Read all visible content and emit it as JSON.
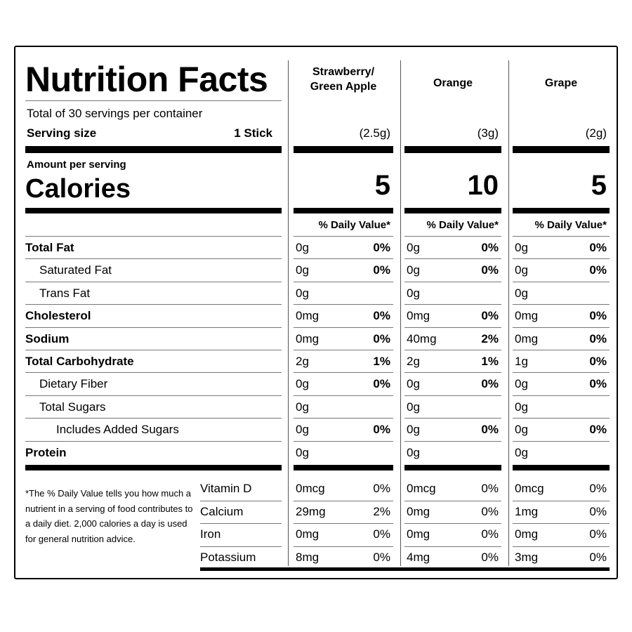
{
  "title": "Nutrition Facts",
  "servings_per_container": "Total of 30 servings per container",
  "serving_size_label": "Serving size",
  "serving_size_value": "1 Stick",
  "amount_per_serving": "Amount per serving",
  "calories_label": "Calories",
  "daily_value_header": "% Daily Value*",
  "flavors": [
    {
      "name_line1": "Strawberry/",
      "name_line2": "Green Apple",
      "serving": "(2.5g)",
      "calories": "5"
    },
    {
      "name_line1": "Orange",
      "name_line2": "",
      "serving": "(3g)",
      "calories": "10"
    },
    {
      "name_line1": "Grape",
      "name_line2": "",
      "serving": "(2g)",
      "calories": "5"
    }
  ],
  "nutrients": [
    {
      "label": "Total Fat",
      "bold": true,
      "indent": 0,
      "values": [
        [
          "0g",
          "0%"
        ],
        [
          "0g",
          "0%"
        ],
        [
          "0g",
          "0%"
        ]
      ]
    },
    {
      "label": "Saturated Fat",
      "bold": false,
      "indent": 1,
      "values": [
        [
          "0g",
          "0%"
        ],
        [
          "0g",
          "0%"
        ],
        [
          "0g",
          "0%"
        ]
      ]
    },
    {
      "label": "Trans Fat",
      "bold": false,
      "indent": 1,
      "values": [
        [
          "0g",
          ""
        ],
        [
          "0g",
          ""
        ],
        [
          "0g",
          ""
        ]
      ]
    },
    {
      "label": "Cholesterol",
      "bold": true,
      "indent": 0,
      "values": [
        [
          "0mg",
          "0%"
        ],
        [
          "0mg",
          "0%"
        ],
        [
          "0mg",
          "0%"
        ]
      ]
    },
    {
      "label": "Sodium",
      "bold": true,
      "indent": 0,
      "values": [
        [
          "0mg",
          "0%"
        ],
        [
          "40mg",
          "2%"
        ],
        [
          "0mg",
          "0%"
        ]
      ]
    },
    {
      "label": "Total Carbohydrate",
      "bold": true,
      "indent": 0,
      "values": [
        [
          "2g",
          "1%"
        ],
        [
          "2g",
          "1%"
        ],
        [
          "1g",
          "0%"
        ]
      ]
    },
    {
      "label": "Dietary Fiber",
      "bold": false,
      "indent": 1,
      "values": [
        [
          "0g",
          "0%"
        ],
        [
          "0g",
          "0%"
        ],
        [
          "0g",
          "0%"
        ]
      ]
    },
    {
      "label": "Total Sugars",
      "bold": false,
      "indent": 1,
      "values": [
        [
          "0g",
          ""
        ],
        [
          "0g",
          ""
        ],
        [
          "0g",
          ""
        ]
      ]
    },
    {
      "label": "Includes Added Sugars",
      "bold": false,
      "indent": 2,
      "values": [
        [
          "0g",
          "0%"
        ],
        [
          "0g",
          "0%"
        ],
        [
          "0g",
          "0%"
        ]
      ]
    },
    {
      "label": "Protein",
      "bold": true,
      "indent": 0,
      "values": [
        [
          "0g",
          ""
        ],
        [
          "0g",
          ""
        ],
        [
          "0g",
          ""
        ]
      ]
    }
  ],
  "vitamins": [
    {
      "label": "Vitamin D",
      "values": [
        [
          "0mcg",
          "0%"
        ],
        [
          "0mcg",
          "0%"
        ],
        [
          "0mcg",
          "0%"
        ]
      ]
    },
    {
      "label": "Calcium",
      "values": [
        [
          "29mg",
          "2%"
        ],
        [
          "0mg",
          "0%"
        ],
        [
          "1mg",
          "0%"
        ]
      ]
    },
    {
      "label": "Iron",
      "values": [
        [
          "0mg",
          "0%"
        ],
        [
          "0mg",
          "0%"
        ],
        [
          "0mg",
          "0%"
        ]
      ]
    },
    {
      "label": "Potassium",
      "values": [
        [
          "8mg",
          "0%"
        ],
        [
          "4mg",
          "0%"
        ],
        [
          "3mg",
          "0%"
        ]
      ]
    }
  ],
  "footnote": "*The % Daily Value tells you how much a nutrient in a serving of food contributes to a daily diet. 2,000 calories a day is used for general nutrition advice."
}
